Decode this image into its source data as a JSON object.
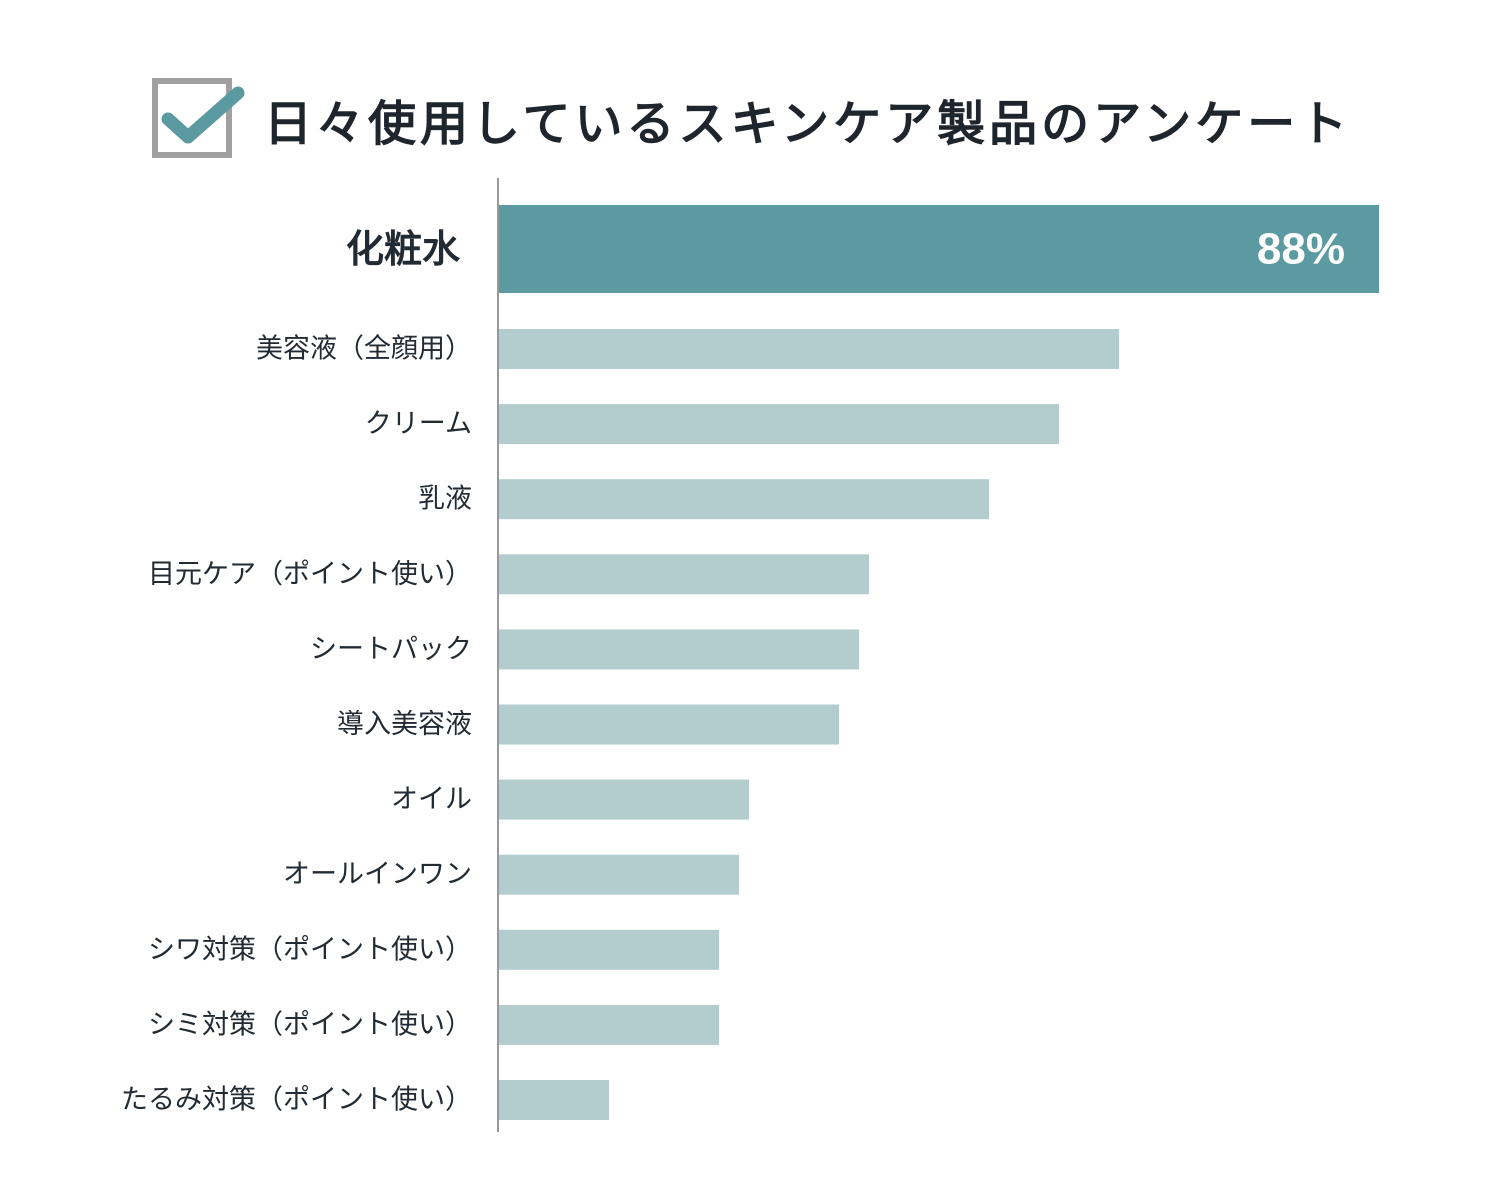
{
  "header": {
    "title": "日々使用しているスキンケア製品のアンケート",
    "icon": "checkbox-checked-icon"
  },
  "colors": {
    "highlight_bar": "#5b9aa0",
    "bar": "#b3cdce",
    "axis": "#999999",
    "text": "#222a33",
    "check_border": "#a0a0a0",
    "check_mark": "#5b9aa0"
  },
  "chart_data": {
    "type": "bar",
    "orientation": "horizontal",
    "title": "日々使用しているスキンケア製品のアンケート",
    "xlabel": "",
    "ylabel": "",
    "unit": "%",
    "xlim": [
      0,
      88
    ],
    "grid": false,
    "highlight_index": 0,
    "highlight_label": "88%",
    "categories": [
      "化粧水",
      "美容液（全顔用）",
      "クリーム",
      "乳液",
      "目元ケア（ポイント使い）",
      "シートパック",
      "導入美容液",
      "オイル",
      "オールインワン",
      "シワ対策（ポイント使い）",
      "シミ対策（ポイント使い）",
      "たるみ対策（ポイント使い）"
    ],
    "values": [
      88,
      62,
      56,
      49,
      37,
      36,
      34,
      25,
      24,
      22,
      22,
      11
    ]
  }
}
